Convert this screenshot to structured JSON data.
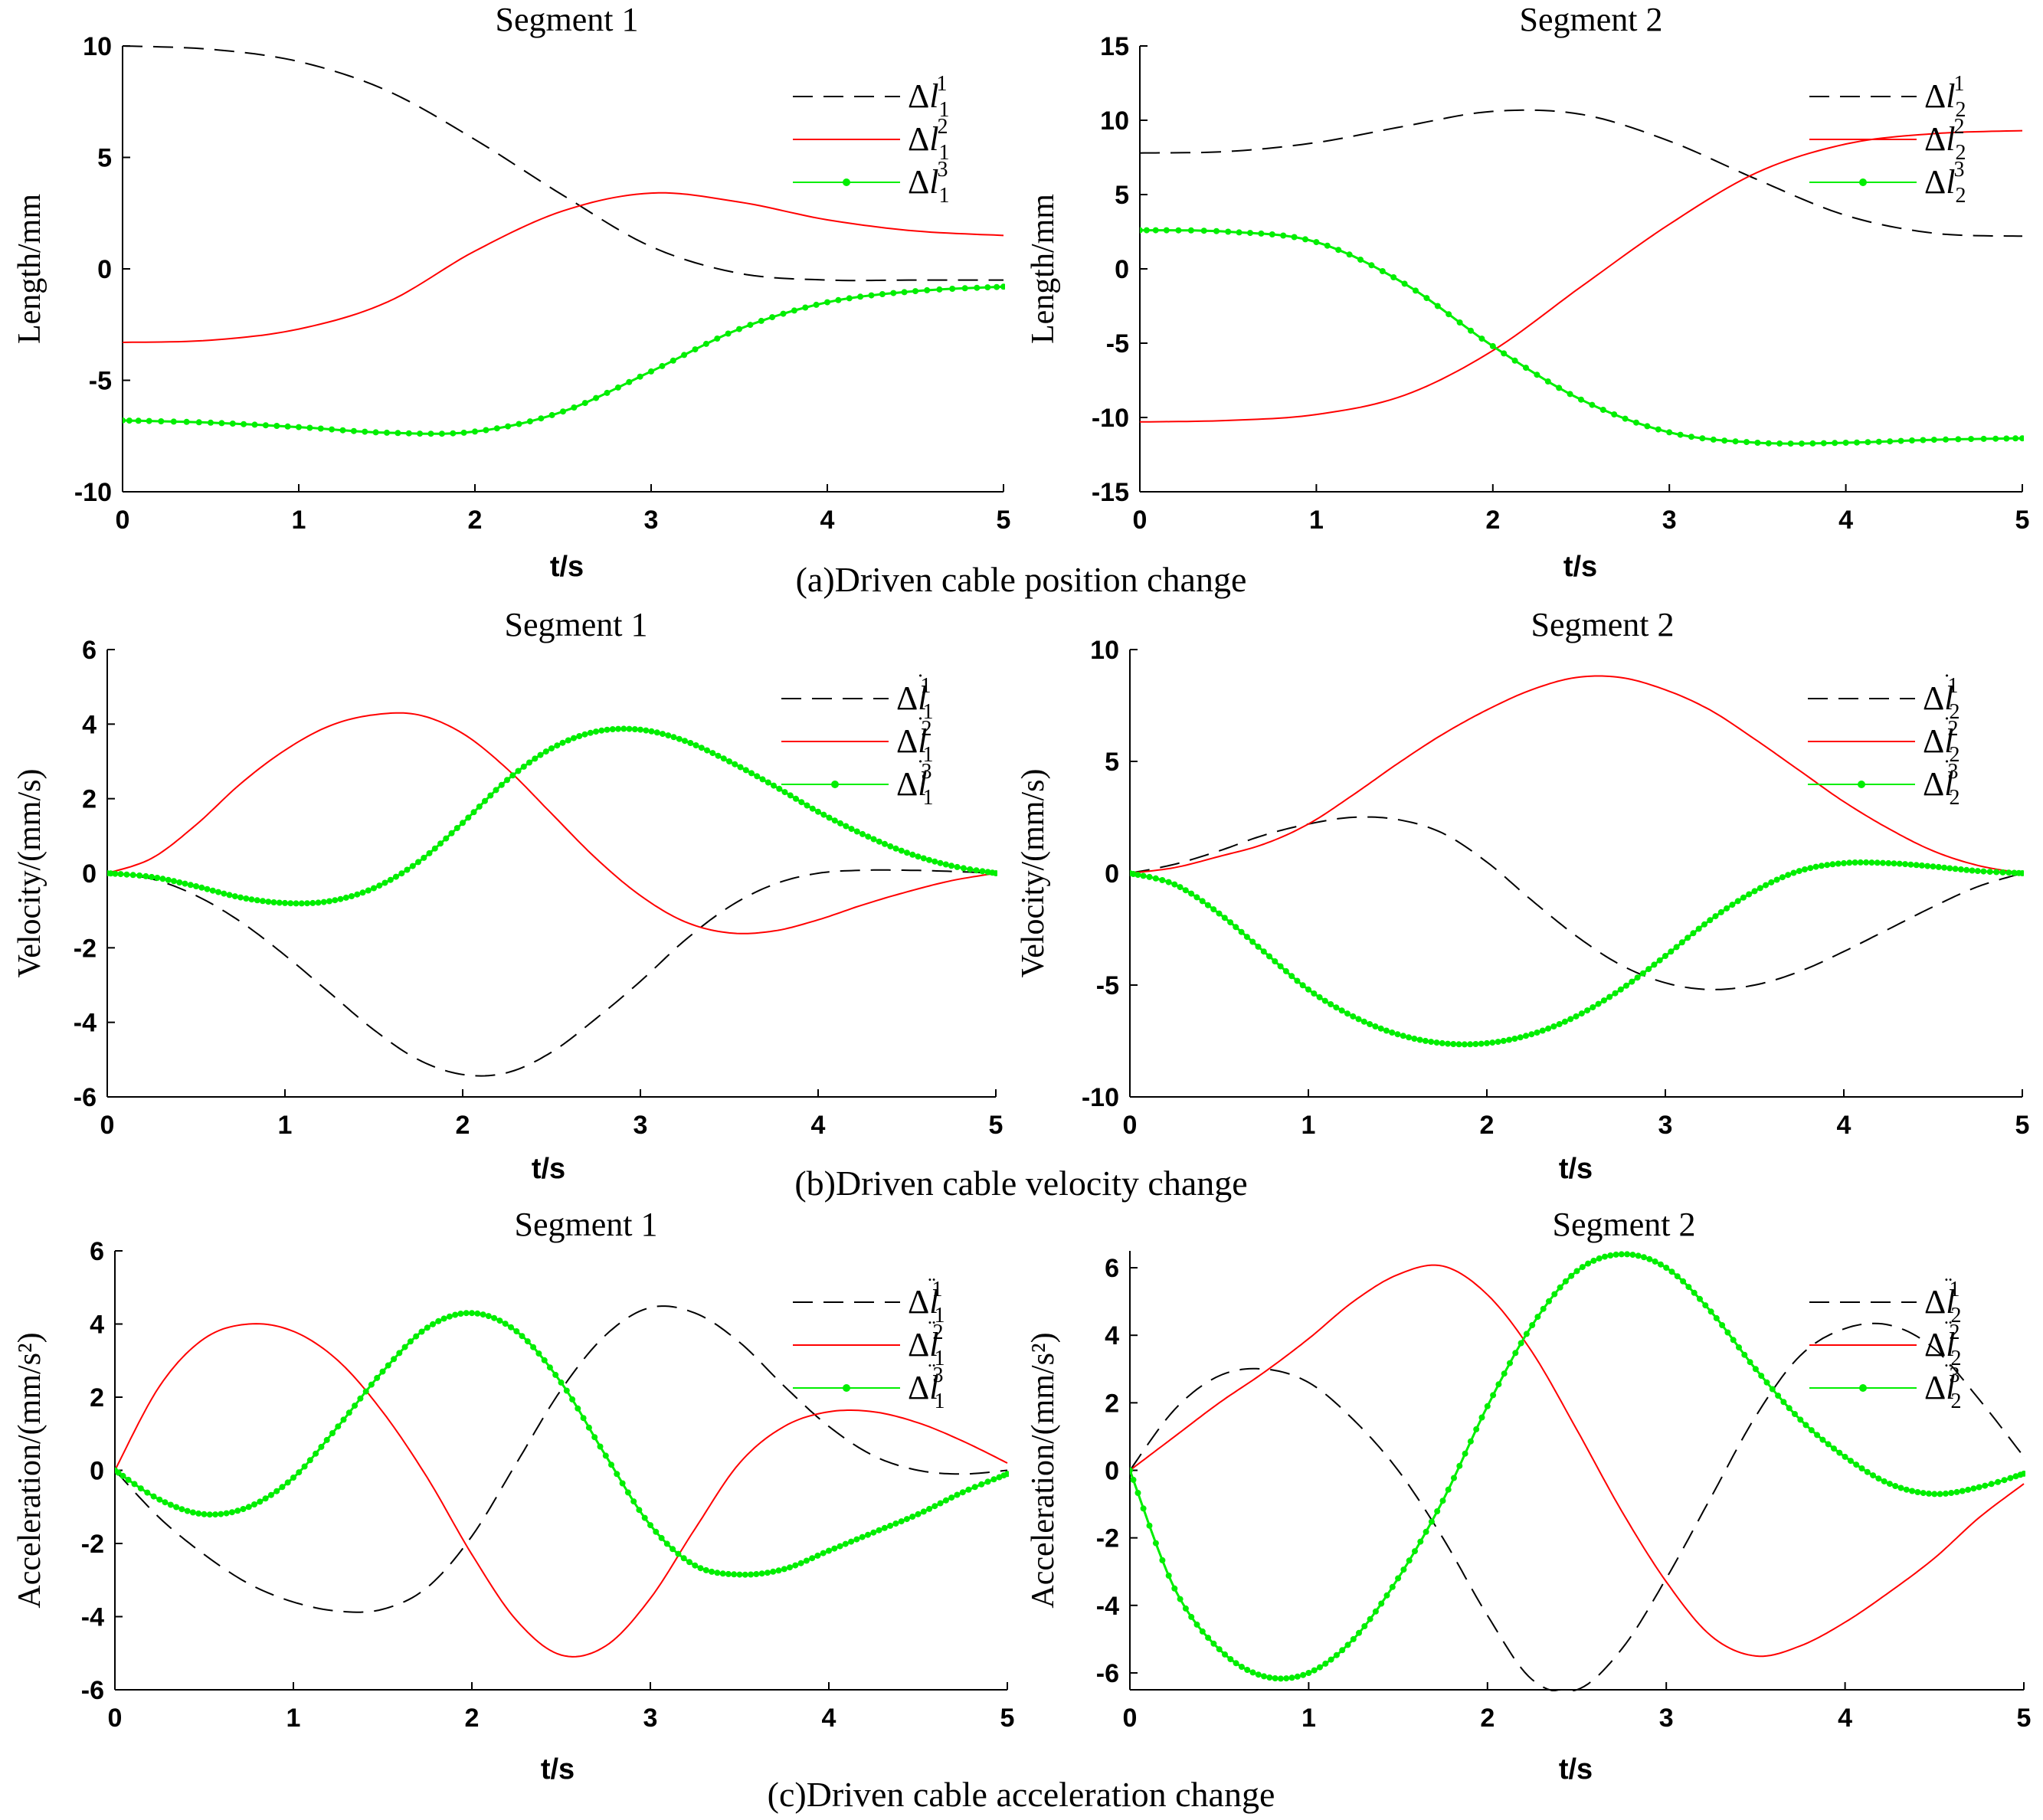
{
  "figure": {
    "colors": {
      "series1": "#000000",
      "series2": "#ff0000",
      "series3": "#00ee00"
    },
    "series_styles": [
      "dashed",
      "solid",
      "solid-dotted"
    ]
  },
  "chart_data": [
    {
      "id": "a1",
      "type": "line",
      "row": "a",
      "title": "Segment 1",
      "xlabel": "t/s",
      "ylabel": "Length/mm",
      "caption": "(a)Driven cable position change",
      "xlim": [
        0,
        5
      ],
      "ylim": [
        -10,
        10
      ],
      "xticks": [
        "0",
        "1",
        "2",
        "3",
        "4",
        "5"
      ],
      "yticks": [
        "-10",
        "-5",
        "0",
        "5",
        "10"
      ],
      "x": [
        0,
        0.5,
        1,
        1.5,
        2,
        2.5,
        3,
        3.5,
        4,
        4.5,
        5
      ],
      "series": [
        {
          "name": "Δl₁¹",
          "legend": {
            "base": "Δ",
            "dot": "",
            "var": "l",
            "sub": "1",
            "sup": "1"
          },
          "values": [
            10,
            9.85,
            9.3,
            8.0,
            5.8,
            3.3,
            1.0,
            -0.2,
            -0.5,
            -0.5,
            -0.5
          ]
        },
        {
          "name": "Δl₁²",
          "legend": {
            "base": "Δ",
            "dot": "",
            "var": "l",
            "sub": "1",
            "sup": "2"
          },
          "values": [
            -3.3,
            -3.2,
            -2.7,
            -1.5,
            0.8,
            2.6,
            3.4,
            3.0,
            2.2,
            1.7,
            1.5
          ]
        },
        {
          "name": "Δl₁³",
          "legend": {
            "base": "Δ",
            "dot": "",
            "var": "l",
            "sub": "1",
            "sup": "3"
          },
          "values": [
            -6.8,
            -6.9,
            -7.1,
            -7.35,
            -7.3,
            -6.4,
            -4.6,
            -2.7,
            -1.5,
            -1.0,
            -0.8
          ]
        }
      ]
    },
    {
      "id": "a2",
      "type": "line",
      "row": "a",
      "title": "Segment 2",
      "xlabel": "t/s",
      "ylabel": "Length/mm",
      "xlim": [
        0,
        5
      ],
      "ylim": [
        -15,
        15
      ],
      "xticks": [
        "0",
        "1",
        "2",
        "3",
        "4",
        "5"
      ],
      "yticks": [
        "-15",
        "-10",
        "-5",
        "0",
        "5",
        "10",
        "15"
      ],
      "x": [
        0,
        0.5,
        1,
        1.5,
        2,
        2.5,
        3,
        3.5,
        4,
        4.5,
        5
      ],
      "series": [
        {
          "name": "Δl₂¹",
          "legend": {
            "base": "Δ",
            "dot": "",
            "var": "l",
            "sub": "2",
            "sup": "1"
          },
          "values": [
            7.8,
            7.9,
            8.5,
            9.6,
            10.6,
            10.4,
            8.6,
            6.0,
            3.6,
            2.4,
            2.2
          ]
        },
        {
          "name": "Δl₂²",
          "legend": {
            "base": "Δ",
            "dot": "",
            "var": "l",
            "sub": "2",
            "sup": "2"
          },
          "values": [
            -10.3,
            -10.2,
            -9.8,
            -8.5,
            -5.5,
            -1.2,
            3.0,
            6.5,
            8.4,
            9.1,
            9.3
          ]
        },
        {
          "name": "Δl₂³",
          "legend": {
            "base": "Δ",
            "dot": "",
            "var": "l",
            "sub": "2",
            "sup": "3"
          },
          "values": [
            2.6,
            2.5,
            1.8,
            -1.0,
            -5.2,
            -8.8,
            -11.0,
            -11.7,
            -11.7,
            -11.5,
            -11.4
          ]
        }
      ]
    },
    {
      "id": "b1",
      "type": "line",
      "row": "b",
      "title": "Segment 1",
      "xlabel": "t/s",
      "ylabel": "Velocity/(mm/s)",
      "caption": "(b)Driven cable velocity change",
      "xlim": [
        0,
        5
      ],
      "ylim": [
        -6,
        6
      ],
      "xticks": [
        "0",
        "1",
        "2",
        "3",
        "4",
        "5"
      ],
      "yticks": [
        "-6",
        "-4",
        "-2",
        "0",
        "2",
        "4",
        "6"
      ],
      "x": [
        0,
        0.25,
        0.5,
        0.75,
        1,
        1.25,
        1.5,
        1.75,
        2,
        2.25,
        2.5,
        2.75,
        3,
        3.25,
        3.5,
        3.75,
        4,
        4.25,
        4.5,
        4.75,
        5
      ],
      "series": [
        {
          "name": "Δl̇₁¹",
          "legend": {
            "base": "Δ",
            "dot": "˙",
            "var": "l",
            "sub": "1",
            "sup": "1"
          },
          "values": [
            0,
            -0.15,
            -0.6,
            -1.3,
            -2.2,
            -3.2,
            -4.2,
            -5.0,
            -5.4,
            -5.35,
            -4.8,
            -3.9,
            -2.9,
            -1.8,
            -0.9,
            -0.3,
            0.0,
            0.08,
            0.08,
            0.05,
            0
          ]
        },
        {
          "name": "Δl̇₁²",
          "legend": {
            "base": "Δ",
            "dot": "˙",
            "var": "l",
            "sub": "1",
            "sup": "2"
          },
          "values": [
            0,
            0.4,
            1.3,
            2.4,
            3.3,
            3.95,
            4.25,
            4.25,
            3.75,
            2.8,
            1.6,
            0.4,
            -0.6,
            -1.3,
            -1.6,
            -1.55,
            -1.25,
            -0.85,
            -0.5,
            -0.2,
            0
          ]
        },
        {
          "name": "Δl̇₁³",
          "legend": {
            "base": "Δ",
            "dot": "˙",
            "var": "l",
            "sub": "1",
            "sup": "3"
          },
          "values": [
            0,
            -0.1,
            -0.35,
            -0.65,
            -0.8,
            -0.75,
            -0.4,
            0.3,
            1.35,
            2.5,
            3.35,
            3.8,
            3.85,
            3.55,
            3.0,
            2.35,
            1.65,
            1.05,
            0.55,
            0.2,
            0
          ]
        }
      ]
    },
    {
      "id": "b2",
      "type": "line",
      "row": "b",
      "title": "Segment 2",
      "xlabel": "t/s",
      "ylabel": "Velocity/(mm/s)",
      "xlim": [
        0,
        5
      ],
      "ylim": [
        -10,
        10
      ],
      "xticks": [
        "0",
        "1",
        "2",
        "3",
        "4",
        "5"
      ],
      "yticks": [
        "-10",
        "-5",
        "0",
        "5",
        "10"
      ],
      "x": [
        0,
        0.25,
        0.5,
        0.75,
        1,
        1.25,
        1.5,
        1.75,
        2,
        2.25,
        2.5,
        2.75,
        3,
        3.25,
        3.5,
        3.75,
        4,
        4.25,
        4.5,
        4.75,
        5
      ],
      "series": [
        {
          "name": "Δl̇₂¹",
          "legend": {
            "base": "Δ",
            "dot": "˙",
            "var": "l",
            "sub": "2",
            "sup": "1"
          },
          "values": [
            0,
            0.4,
            1.0,
            1.7,
            2.2,
            2.5,
            2.4,
            1.8,
            0.5,
            -1.2,
            -2.8,
            -4.1,
            -4.9,
            -5.2,
            -5.0,
            -4.4,
            -3.5,
            -2.5,
            -1.5,
            -0.6,
            0
          ]
        },
        {
          "name": "Δl̇₂²",
          "legend": {
            "base": "Δ",
            "dot": "˙",
            "var": "l",
            "sub": "2",
            "sup": "2"
          },
          "values": [
            0,
            0.25,
            0.75,
            1.3,
            2.2,
            3.5,
            4.9,
            6.2,
            7.3,
            8.2,
            8.75,
            8.75,
            8.2,
            7.3,
            6.0,
            4.6,
            3.2,
            2.0,
            1.0,
            0.35,
            0
          ]
        },
        {
          "name": "Δl̇₂³",
          "legend": {
            "base": "Δ",
            "dot": "˙",
            "var": "l",
            "sub": "2",
            "sup": "3"
          },
          "values": [
            0,
            -0.5,
            -1.8,
            -3.5,
            -5.2,
            -6.4,
            -7.2,
            -7.6,
            -7.6,
            -7.2,
            -6.4,
            -5.2,
            -3.7,
            -2.1,
            -0.8,
            0.1,
            0.45,
            0.45,
            0.3,
            0.1,
            0
          ]
        }
      ]
    },
    {
      "id": "c1",
      "type": "line",
      "row": "c",
      "title": "Segment 1",
      "xlabel": "t/s",
      "ylabel": "Acceleration/(mm/s²)",
      "caption": "(c)Driven cable acceleration change",
      "xlim": [
        0,
        5
      ],
      "ylim": [
        -6,
        6
      ],
      "xticks": [
        "0",
        "1",
        "2",
        "3",
        "4",
        "5"
      ],
      "yticks": [
        "-6",
        "-4",
        "-2",
        "0",
        "2",
        "4",
        "6"
      ],
      "x": [
        0,
        0.25,
        0.5,
        0.75,
        1,
        1.25,
        1.5,
        1.75,
        2,
        2.25,
        2.5,
        2.75,
        3,
        3.25,
        3.5,
        3.75,
        4,
        4.25,
        4.5,
        4.75,
        5
      ],
      "series": [
        {
          "name": "Δl̈₁¹",
          "legend": {
            "base": "Δ",
            "dot": "¨",
            "var": "l",
            "sub": "1",
            "sup": "1"
          },
          "values": [
            0,
            -1.3,
            -2.3,
            -3.1,
            -3.6,
            -3.85,
            -3.8,
            -3.2,
            -1.8,
            0.2,
            2.2,
            3.7,
            4.45,
            4.3,
            3.5,
            2.3,
            1.2,
            0.4,
            0.0,
            -0.1,
            0
          ]
        },
        {
          "name": "Δl̈₁²",
          "legend": {
            "base": "Δ",
            "dot": "¨",
            "var": "l",
            "sub": "1",
            "sup": "2"
          },
          "values": [
            0,
            2.3,
            3.6,
            4.0,
            3.8,
            3.0,
            1.6,
            -0.2,
            -2.3,
            -4.1,
            -5.05,
            -4.8,
            -3.5,
            -1.6,
            0.2,
            1.2,
            1.6,
            1.6,
            1.3,
            0.8,
            0.2
          ]
        },
        {
          "name": "Δl̈₁³",
          "legend": {
            "base": "Δ",
            "dot": "¨",
            "var": "l",
            "sub": "1",
            "sup": "3"
          },
          "values": [
            0,
            -0.8,
            -1.2,
            -1.0,
            -0.2,
            1.2,
            2.7,
            3.9,
            4.3,
            3.8,
            2.4,
            0.4,
            -1.5,
            -2.6,
            -2.85,
            -2.7,
            -2.2,
            -1.7,
            -1.2,
            -0.6,
            -0.1
          ]
        }
      ]
    },
    {
      "id": "c2",
      "type": "line",
      "row": "c",
      "title": "Segment 2",
      "xlabel": "t/s",
      "ylabel": "Acceleration/(mm/s²)",
      "xlim": [
        0,
        5
      ],
      "ylim": [
        -6.5,
        6.5
      ],
      "xticks": [
        "0",
        "1",
        "2",
        "3",
        "4",
        "5"
      ],
      "yticks": [
        "-6",
        "-4",
        "-2",
        "0",
        "2",
        "4",
        "6"
      ],
      "x": [
        0,
        0.25,
        0.5,
        0.75,
        1,
        1.25,
        1.5,
        1.75,
        2,
        2.25,
        2.5,
        2.75,
        3,
        3.25,
        3.5,
        3.75,
        4,
        4.25,
        4.5,
        4.75,
        5
      ],
      "series": [
        {
          "name": "Δl̈₂¹",
          "legend": {
            "base": "Δ",
            "dot": "¨",
            "var": "l",
            "sub": "2",
            "sup": "1"
          },
          "values": [
            0,
            1.8,
            2.8,
            3.0,
            2.6,
            1.5,
            0,
            -2.0,
            -4.3,
            -6.2,
            -6.5,
            -5.3,
            -3.2,
            -0.8,
            1.6,
            3.4,
            4.2,
            4.3,
            3.6,
            2.1,
            0.4
          ]
        },
        {
          "name": "Δl̈₂²",
          "legend": {
            "base": "Δ",
            "dot": "¨",
            "var": "l",
            "sub": "2",
            "sup": "2"
          },
          "values": [
            0,
            1.0,
            2.0,
            2.9,
            3.9,
            5.0,
            5.8,
            6.05,
            5.2,
            3.5,
            1.2,
            -1.2,
            -3.3,
            -4.9,
            -5.5,
            -5.2,
            -4.5,
            -3.6,
            -2.6,
            -1.4,
            -0.4
          ]
        },
        {
          "name": "Δl̈₂³",
          "legend": {
            "base": "Δ",
            "dot": "¨",
            "var": "l",
            "sub": "2",
            "sup": "3"
          },
          "values": [
            0,
            -3.5,
            -5.3,
            -6.1,
            -6.0,
            -5.0,
            -3.2,
            -0.9,
            1.9,
            4.3,
            5.9,
            6.4,
            6.0,
            4.7,
            3.0,
            1.5,
            0.4,
            -0.4,
            -0.7,
            -0.5,
            -0.1
          ]
        }
      ]
    }
  ]
}
